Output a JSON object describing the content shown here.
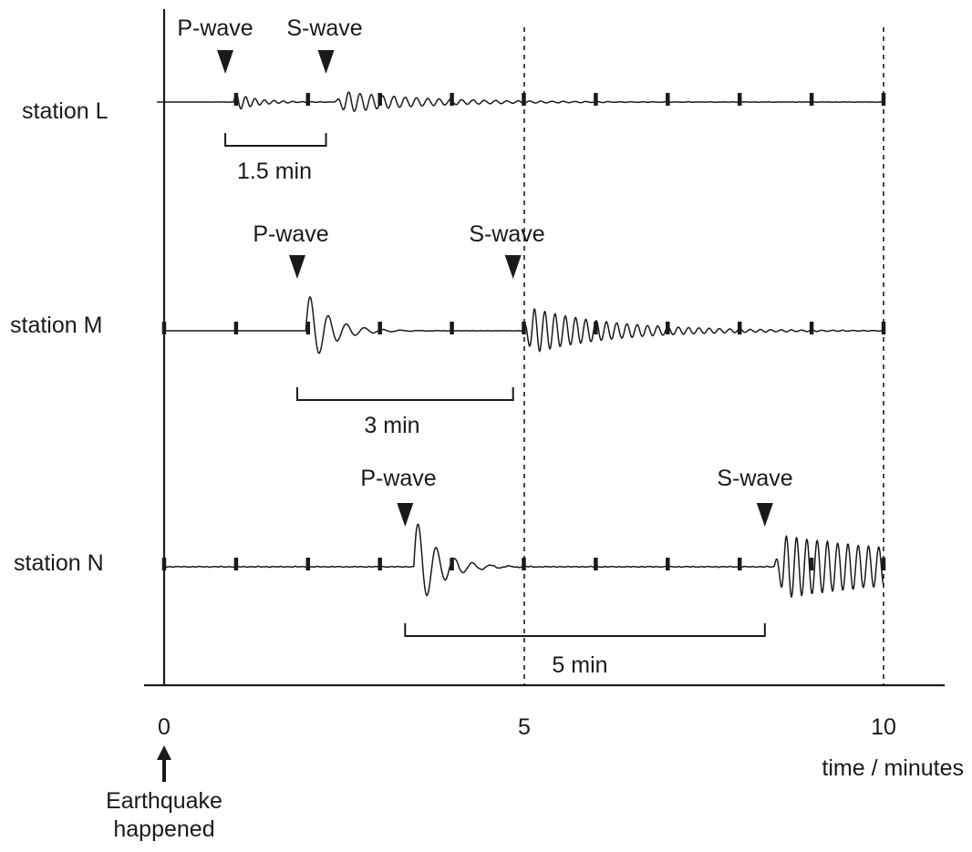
{
  "x_axis": {
    "label": "time / minutes",
    "tick_labels": [
      "0",
      "5",
      "10"
    ],
    "tick_values": [
      0,
      5,
      10
    ],
    "range": [
      0,
      10
    ]
  },
  "origin_note": {
    "line1": "Earthquake",
    "line2": "happened"
  },
  "stations": [
    {
      "name": "station L",
      "p_arrival": 0.85,
      "s_arrival": 2.25,
      "interval_minutes": 1.5,
      "interval_label": "1.5 min",
      "p_label": "P-wave",
      "s_label": "S-wave"
    },
    {
      "name": "station M",
      "p_arrival": 1.85,
      "s_arrival": 4.85,
      "interval_minutes": 3,
      "interval_label": "3 min",
      "p_label": "P-wave",
      "s_label": "S-wave"
    },
    {
      "name": "station N",
      "p_arrival": 3.35,
      "s_arrival": 8.35,
      "interval_minutes": 5,
      "interval_label": "5 min",
      "p_label": "P-wave",
      "s_label": "S-wave"
    }
  ],
  "minute_marks": [
    0,
    1,
    2,
    3,
    4,
    5,
    6,
    7,
    8,
    9,
    10
  ]
}
